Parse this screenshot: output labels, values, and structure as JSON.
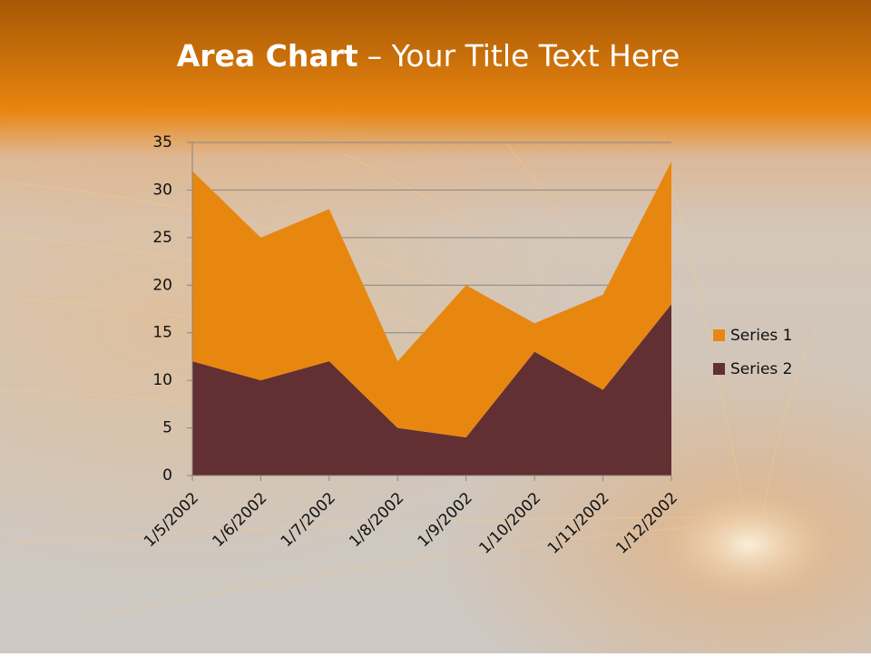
{
  "chart_data": {
    "type": "stacked-area",
    "title": [
      "Area Chart",
      "– Your Title Text Here"
    ],
    "categories": [
      "1/5/2002",
      "1/6/2002",
      "1/7/2002",
      "1/8/2002",
      "1/9/2002",
      "1/10/2002",
      "1/11/2002",
      "1/12/2002"
    ],
    "series": [
      {
        "name": "Series 1",
        "color": "#e8870f",
        "values": [
          20,
          15,
          16,
          7,
          16,
          3,
          10,
          15
        ]
      },
      {
        "name": "Series 2",
        "color": "#622f32",
        "values": [
          12,
          10,
          12,
          5,
          4,
          13,
          9,
          18
        ]
      }
    ],
    "ylim": [
      0,
      35
    ],
    "yticks": [
      0,
      5,
      10,
      15,
      20,
      25,
      30,
      35
    ],
    "grid": true,
    "legend": "right"
  }
}
